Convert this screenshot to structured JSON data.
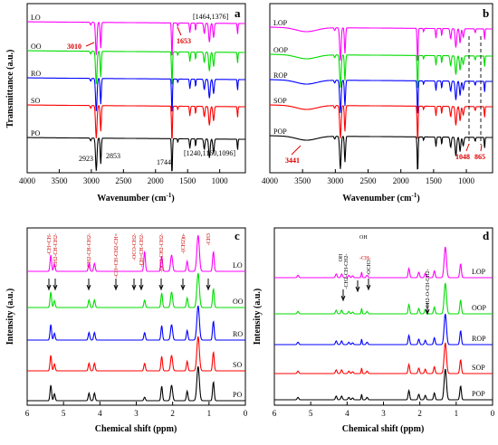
{
  "panels": {
    "a": {
      "letter": "a",
      "xlabel": "Wavenumber (cm",
      "xlabel_sup": "-1",
      "xlabel_tail": ")",
      "ylabel": "Transmittance (a.u.)",
      "annotations": {
        "t3010": "3010",
        "t1653": "1653",
        "t1464": "[1464,1376]",
        "t2923": "2923",
        "t2853": "2853",
        "t1744": "1744",
        "t1240": "[1240,1160,1096]"
      }
    },
    "b": {
      "letter": "b",
      "xlabel": "Wavenumber (cm",
      "xlabel_sup": "-1",
      "xlabel_tail": ")",
      "ylabel": "Transmittance (a.u.)",
      "annotations": {
        "t3441": "3441",
        "t1048": "1048",
        "t865": "865"
      }
    },
    "c": {
      "letter": "c",
      "xlabel": "Chemical shift (ppm)",
      "ylabel": "Intensity (a.u.)",
      "annotations": [
        "-CH=CH-",
        "-CH2-CH-CH2-",
        "-CH2-CH-CH2-",
        "-CH=CH-CH2-CH=",
        "-OCO-CH2-",
        "-CH=CH-CH2-",
        "-OCO-CH2-CH2-",
        "-(CH2)n-",
        "-CH3"
      ]
    },
    "d": {
      "letter": "d",
      "xlabel": "Chemical shift (ppm)",
      "ylabel": "Intensity (a.u.)",
      "annotations": [
        "OH",
        "-CH2-CH-CH2-",
        "OH",
        "-CH-",
        "-OCH3",
        "-CH2-O-CH-CH2-"
      ]
    }
  },
  "chart_data": [
    {
      "type": "line",
      "panel": "a",
      "xlabel": "Wavenumber (cm-1)",
      "ylabel": "Transmittance (a.u.)",
      "xlim": [
        4000,
        600
      ],
      "xticks": [
        4000,
        3500,
        3000,
        2500,
        2000,
        1500,
        1000
      ],
      "x_reversed": true,
      "series": [
        {
          "name": "LO",
          "color": "#ff00ff"
        },
        {
          "name": "OO",
          "color": "#00dd00"
        },
        {
          "name": "RO",
          "color": "#0000ff"
        },
        {
          "name": "SO",
          "color": "#ff0000"
        },
        {
          "name": "PO",
          "color": "#000000"
        }
      ],
      "bands_cm1": [
        3010,
        2923,
        2853,
        1744,
        1653,
        1464,
        1376,
        1240,
        1160,
        1096
      ]
    },
    {
      "type": "line",
      "panel": "b",
      "xlabel": "Wavenumber (cm-1)",
      "ylabel": "Transmittance (a.u.)",
      "xlim": [
        4000,
        600
      ],
      "xticks": [
        4000,
        3500,
        3000,
        2500,
        2000,
        1500,
        1000
      ],
      "x_reversed": true,
      "series": [
        {
          "name": "LOP",
          "color": "#ff00ff"
        },
        {
          "name": "OOP",
          "color": "#00dd00"
        },
        {
          "name": "ROP",
          "color": "#0000ff"
        },
        {
          "name": "SOP",
          "color": "#ff0000"
        },
        {
          "name": "POP",
          "color": "#000000"
        }
      ],
      "bands_cm1": [
        3441,
        1048,
        865
      ]
    },
    {
      "type": "line",
      "panel": "c",
      "xlabel": "Chemical shift (ppm)",
      "ylabel": "Intensity (a.u.)",
      "xlim": [
        6,
        0
      ],
      "xticks": [
        6,
        5,
        4,
        3,
        2,
        1,
        0
      ],
      "x_reversed": true,
      "series": [
        {
          "name": "LO",
          "color": "#ff00ff"
        },
        {
          "name": "OO",
          "color": "#00dd00"
        },
        {
          "name": "RO",
          "color": "#0000ff"
        },
        {
          "name": "SO",
          "color": "#ff0000"
        },
        {
          "name": "PO",
          "color": "#000000"
        }
      ],
      "peaks_ppm": [
        5.35,
        5.25,
        4.3,
        4.15,
        2.77,
        2.3,
        2.03,
        1.6,
        1.3,
        0.88
      ]
    },
    {
      "type": "line",
      "panel": "d",
      "xlabel": "Chemical shift (ppm)",
      "ylabel": "Intensity (a.u.)",
      "xlim": [
        6,
        0
      ],
      "xticks": [
        6,
        5,
        4,
        3,
        2,
        1,
        0
      ],
      "x_reversed": true,
      "series": [
        {
          "name": "LOP",
          "color": "#ff00ff"
        },
        {
          "name": "OOP",
          "color": "#00dd00"
        },
        {
          "name": "ROP",
          "color": "#0000ff"
        },
        {
          "name": "SOP",
          "color": "#ff0000"
        },
        {
          "name": "POP",
          "color": "#000000"
        }
      ],
      "peaks_ppm": [
        4.3,
        4.15,
        3.85,
        3.6,
        3.45,
        2.3,
        1.85,
        1.6,
        1.3,
        0.88
      ]
    }
  ]
}
